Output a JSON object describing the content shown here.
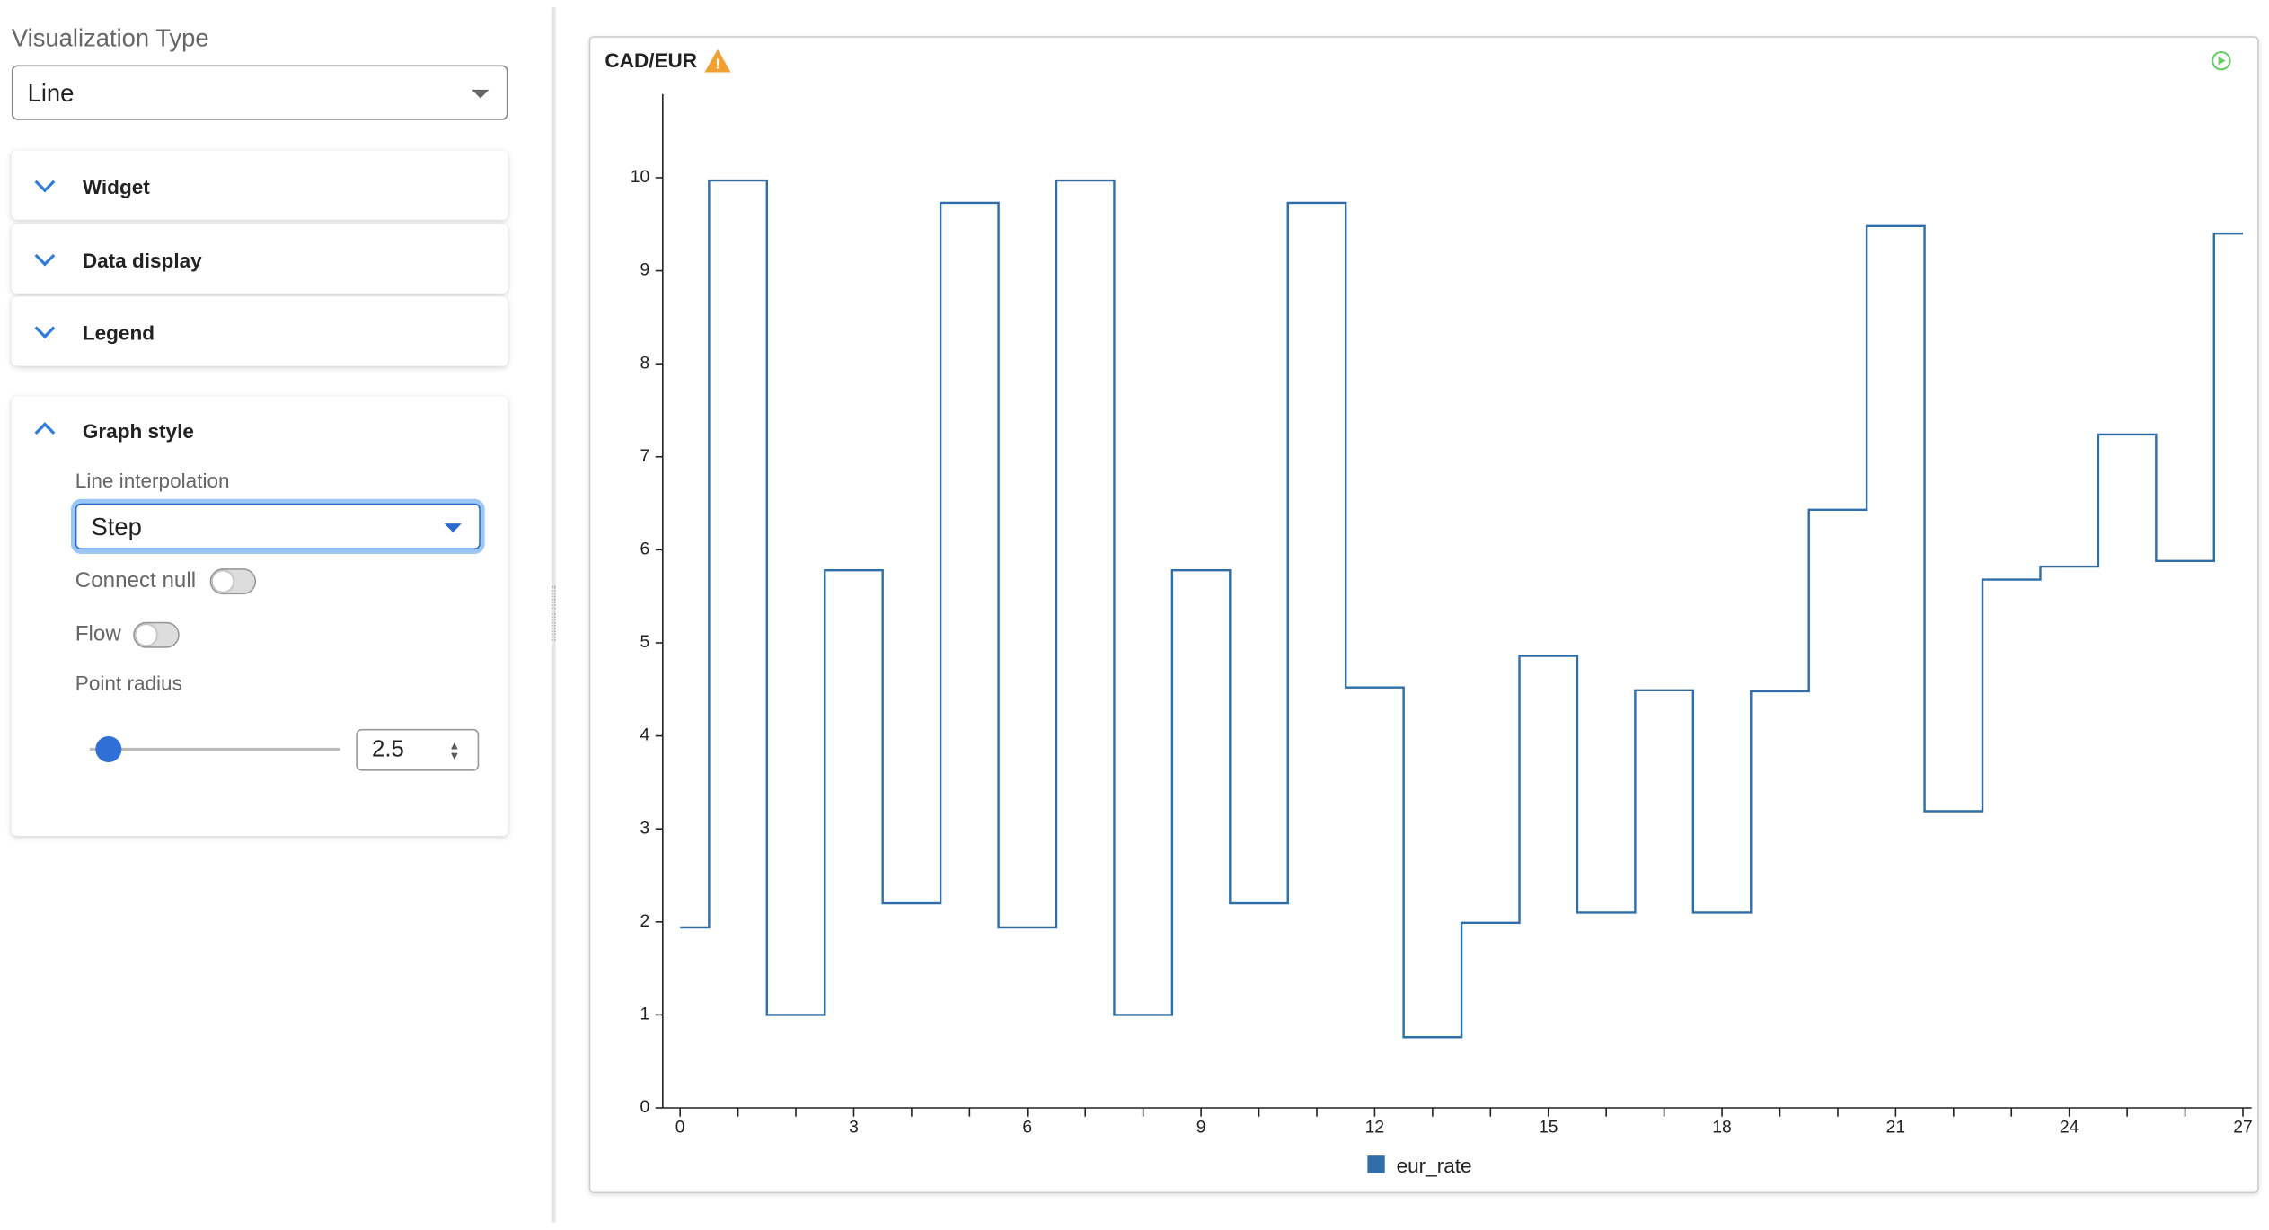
{
  "sidebar": {
    "visualization_label": "Visualization Type",
    "visualization_value": "Line",
    "sections": [
      "Widget",
      "Data display",
      "Legend"
    ],
    "graph_style": {
      "title": "Graph style",
      "interpolation_label": "Line interpolation",
      "interpolation_value": "Step",
      "connect_null_label": "Connect null",
      "flow_label": "Flow",
      "point_radius_label": "Point radius",
      "point_radius_value": "2.5"
    }
  },
  "chart_data": {
    "type": "line",
    "title": "CAD/EUR",
    "interpolation": "step",
    "x": [
      0,
      1,
      2,
      3,
      4,
      5,
      6,
      7,
      8,
      9,
      10,
      11,
      12,
      13,
      14,
      15,
      16,
      17,
      18,
      19,
      20,
      21,
      22,
      23,
      24,
      25,
      26,
      27
    ],
    "series": [
      {
        "name": "eur_rate",
        "color": "#2f6ea8",
        "values": [
          1.94,
          9.97,
          1.0,
          5.78,
          2.2,
          9.73,
          1.94,
          9.97,
          1.0,
          5.78,
          2.2,
          9.73,
          4.52,
          0.76,
          1.99,
          4.86,
          2.1,
          4.49,
          2.1,
          4.48,
          6.43,
          9.48,
          3.19,
          5.68,
          5.82,
          7.24,
          5.88,
          9.4
        ]
      }
    ],
    "xlim": [
      -0.3,
      27.15
    ],
    "ylim": [
      0,
      10.9
    ],
    "xticks": [
      0,
      3,
      6,
      9,
      12,
      15,
      18,
      21,
      24,
      27
    ],
    "x_minor_ticks": [
      1,
      2,
      4,
      5,
      7,
      8,
      10,
      11,
      13,
      14,
      16,
      17,
      19,
      20,
      22,
      23,
      25,
      26
    ],
    "yticks": [
      0,
      1,
      2,
      3,
      4,
      5,
      6,
      7,
      8,
      9,
      10
    ]
  }
}
